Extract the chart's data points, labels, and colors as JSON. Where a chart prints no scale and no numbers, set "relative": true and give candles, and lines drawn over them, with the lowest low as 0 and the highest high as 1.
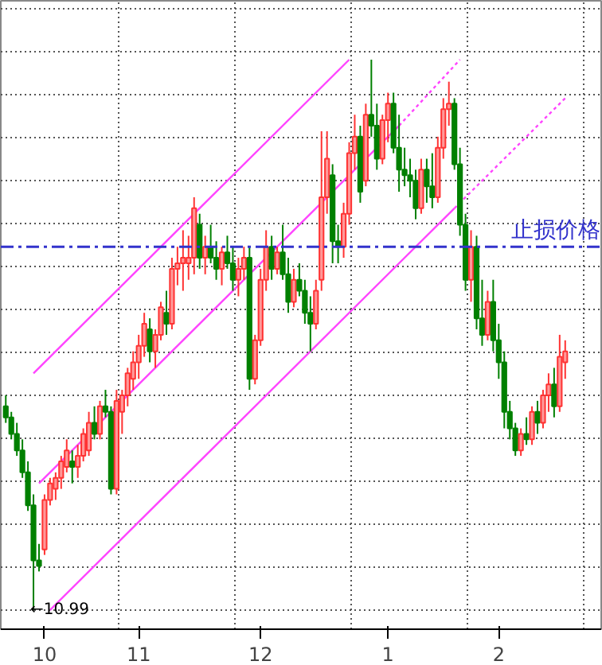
{
  "chart_data": {
    "type": "candlestick",
    "relative": true,
    "grid": true,
    "categories": [
      null,
      null,
      null,
      null,
      null,
      null,
      null,
      "10",
      null,
      null,
      null,
      null,
      null,
      null,
      null,
      null,
      null,
      null,
      null,
      null,
      null,
      null,
      null,
      null,
      "11",
      null,
      null,
      null,
      null,
      null,
      null,
      null,
      null,
      null,
      null,
      null,
      null,
      null,
      null,
      null,
      null,
      null,
      null,
      null,
      null,
      null,
      "12",
      null,
      null,
      null,
      null,
      null,
      null,
      null,
      null,
      null,
      null,
      null,
      null,
      null,
      null,
      null,
      null,
      null,
      null,
      null,
      null,
      null,
      null,
      "1",
      null,
      null,
      null,
      null,
      null,
      null,
      null,
      null,
      null,
      null,
      null,
      null,
      null,
      null,
      null,
      null,
      null,
      null,
      null,
      "2",
      null,
      null,
      null,
      null,
      null,
      null,
      null,
      null,
      null,
      null,
      null,
      null
    ],
    "ohlc": [
      [
        0.37,
        0.39,
        0.34,
        0.35
      ],
      [
        0.35,
        0.36,
        0.31,
        0.32
      ],
      [
        0.32,
        0.34,
        0.28,
        0.29
      ],
      [
        0.29,
        0.31,
        0.24,
        0.25
      ],
      [
        0.25,
        0.27,
        0.18,
        0.19
      ],
      [
        0.19,
        0.21,
        0.0,
        0.09
      ],
      [
        0.09,
        0.12,
        0.07,
        0.08
      ],
      [
        0.11,
        0.21,
        0.1,
        0.2
      ],
      [
        0.2,
        0.24,
        0.19,
        0.23
      ],
      [
        0.22,
        0.25,
        0.2,
        0.24
      ],
      [
        0.24,
        0.28,
        0.22,
        0.27
      ],
      [
        0.26,
        0.31,
        0.25,
        0.29
      ],
      [
        0.27,
        0.29,
        0.23,
        0.26
      ],
      [
        0.26,
        0.3,
        0.24,
        0.28
      ],
      [
        0.28,
        0.33,
        0.27,
        0.32
      ],
      [
        0.29,
        0.36,
        0.28,
        0.34
      ],
      [
        0.34,
        0.37,
        0.31,
        0.32
      ],
      [
        0.32,
        0.38,
        0.31,
        0.37
      ],
      [
        0.37,
        0.4,
        0.35,
        0.36
      ],
      [
        0.36,
        0.37,
        0.21,
        0.22
      ],
      [
        0.22,
        0.4,
        0.21,
        0.38
      ],
      [
        0.36,
        0.4,
        0.32,
        0.39
      ],
      [
        0.39,
        0.44,
        0.37,
        0.43
      ],
      [
        0.42,
        0.47,
        0.4,
        0.45
      ],
      [
        0.45,
        0.5,
        0.42,
        0.48
      ],
      [
        0.48,
        0.54,
        0.46,
        0.52
      ],
      [
        0.51,
        0.53,
        0.45,
        0.47
      ],
      [
        0.47,
        0.51,
        0.44,
        0.5
      ],
      [
        0.5,
        0.56,
        0.49,
        0.55
      ],
      [
        0.54,
        0.58,
        0.5,
        0.52
      ],
      [
        0.52,
        0.64,
        0.51,
        0.62
      ],
      [
        0.62,
        0.66,
        0.59,
        0.63
      ],
      [
        0.63,
        0.69,
        0.58,
        0.64
      ],
      [
        0.63,
        0.68,
        0.6,
        0.64
      ],
      [
        0.64,
        0.75,
        0.61,
        0.73
      ],
      [
        0.7,
        0.72,
        0.62,
        0.64
      ],
      [
        0.64,
        0.68,
        0.61,
        0.66
      ],
      [
        0.66,
        0.7,
        0.63,
        0.64
      ],
      [
        0.64,
        0.67,
        0.6,
        0.62
      ],
      [
        0.62,
        0.66,
        0.59,
        0.65
      ],
      [
        0.65,
        0.68,
        0.62,
        0.63
      ],
      [
        0.63,
        0.66,
        0.58,
        0.6
      ],
      [
        0.6,
        0.64,
        0.57,
        0.62
      ],
      [
        0.62,
        0.66,
        0.6,
        0.64
      ],
      [
        0.64,
        0.66,
        0.4,
        0.42
      ],
      [
        0.42,
        0.5,
        0.41,
        0.49
      ],
      [
        0.49,
        0.62,
        0.48,
        0.6
      ],
      [
        0.6,
        0.69,
        0.58,
        0.66
      ],
      [
        0.66,
        0.68,
        0.6,
        0.62
      ],
      [
        0.62,
        0.66,
        0.61,
        0.65
      ],
      [
        0.65,
        0.7,
        0.6,
        0.61
      ],
      [
        0.61,
        0.64,
        0.54,
        0.56
      ],
      [
        0.56,
        0.62,
        0.55,
        0.6
      ],
      [
        0.6,
        0.63,
        0.57,
        0.58
      ],
      [
        0.58,
        0.6,
        0.52,
        0.54
      ],
      [
        0.54,
        0.57,
        0.47,
        0.52
      ],
      [
        0.52,
        0.6,
        0.51,
        0.58
      ],
      [
        0.6,
        0.87,
        0.58,
        0.75
      ],
      [
        0.75,
        0.87,
        0.72,
        0.82
      ],
      [
        0.79,
        0.81,
        0.63,
        0.67
      ],
      [
        0.67,
        0.7,
        0.63,
        0.66
      ],
      [
        0.66,
        0.74,
        0.64,
        0.72
      ],
      [
        0.72,
        0.85,
        0.7,
        0.83
      ],
      [
        0.83,
        0.9,
        0.8,
        0.86
      ],
      [
        0.86,
        0.88,
        0.74,
        0.76
      ],
      [
        0.78,
        0.92,
        0.77,
        0.9
      ],
      [
        0.9,
        1.0,
        0.86,
        0.88
      ],
      [
        0.88,
        0.92,
        0.8,
        0.82
      ],
      [
        0.82,
        0.9,
        0.81,
        0.89
      ],
      [
        0.89,
        0.94,
        0.85,
        0.92
      ],
      [
        0.92,
        0.94,
        0.83,
        0.84
      ],
      [
        0.84,
        0.9,
        0.76,
        0.8
      ],
      [
        0.8,
        0.84,
        0.77,
        0.79
      ],
      [
        0.79,
        0.82,
        0.75,
        0.78
      ],
      [
        0.78,
        0.8,
        0.71,
        0.73
      ],
      [
        0.73,
        0.82,
        0.72,
        0.8
      ],
      [
        0.8,
        0.82,
        0.74,
        0.77
      ],
      [
        0.77,
        0.83,
        0.73,
        0.75
      ],
      [
        0.75,
        0.86,
        0.74,
        0.84
      ],
      [
        0.84,
        0.93,
        0.82,
        0.91
      ],
      [
        0.91,
        0.96,
        0.88,
        0.92
      ],
      [
        0.92,
        0.93,
        0.8,
        0.81
      ],
      [
        0.81,
        0.84,
        0.68,
        0.7
      ],
      [
        0.7,
        0.72,
        0.58,
        0.6
      ],
      [
        0.6,
        0.69,
        0.56,
        0.66
      ],
      [
        0.66,
        0.68,
        0.51,
        0.53
      ],
      [
        0.53,
        0.6,
        0.48,
        0.5
      ],
      [
        0.5,
        0.58,
        0.49,
        0.56
      ],
      [
        0.56,
        0.6,
        0.47,
        0.49
      ],
      [
        0.49,
        0.52,
        0.42,
        0.45
      ],
      [
        0.45,
        0.47,
        0.33,
        0.36
      ],
      [
        0.36,
        0.38,
        0.31,
        0.33
      ],
      [
        0.33,
        0.34,
        0.28,
        0.29
      ],
      [
        0.29,
        0.33,
        0.28,
        0.32
      ],
      [
        0.32,
        0.35,
        0.3,
        0.31
      ],
      [
        0.31,
        0.37,
        0.3,
        0.36
      ],
      [
        0.36,
        0.38,
        0.32,
        0.34
      ],
      [
        0.34,
        0.4,
        0.33,
        0.39
      ],
      [
        0.39,
        0.43,
        0.36,
        0.41
      ],
      [
        0.41,
        0.44,
        0.35,
        0.37
      ],
      [
        0.37,
        0.5,
        0.36,
        0.46
      ],
      [
        0.45,
        0.49,
        0.42,
        0.47
      ]
    ],
    "series": [
      {
        "type": "line",
        "color": "#ff44ff",
        "line_style": "solid",
        "values": [
          null,
          null,
          null,
          null,
          null,
          0.43,
          null,
          null,
          null,
          null,
          null,
          null,
          null,
          null,
          null,
          null,
          null,
          null,
          null,
          null,
          null,
          null,
          null,
          null,
          null,
          null,
          null,
          null,
          null,
          null,
          null,
          null,
          null,
          null,
          null,
          null,
          null,
          null,
          null,
          null,
          null,
          null,
          null,
          null,
          null,
          null,
          null,
          null,
          null,
          null,
          null,
          null,
          null,
          null,
          null,
          null,
          null,
          null,
          null,
          null,
          null,
          null,
          1.0,
          null,
          null,
          null,
          null,
          null,
          null,
          null,
          null,
          null,
          null,
          null,
          null,
          null,
          null,
          null,
          null,
          null,
          null,
          null,
          null,
          null,
          null,
          null,
          null,
          null,
          null,
          null,
          null,
          null,
          null,
          null,
          null,
          null,
          null,
          null,
          null,
          null,
          null,
          null
        ]
      },
      {
        "type": "line",
        "color": "#ff44ff",
        "line_style": "solid",
        "values": [
          null,
          null,
          null,
          null,
          null,
          null,
          0.23,
          null,
          null,
          null,
          null,
          null,
          null,
          null,
          null,
          null,
          null,
          null,
          null,
          null,
          null,
          null,
          null,
          null,
          null,
          null,
          null,
          null,
          null,
          null,
          null,
          null,
          null,
          null,
          null,
          null,
          null,
          null,
          null,
          null,
          null,
          null,
          null,
          null,
          null,
          null,
          null,
          null,
          null,
          null,
          null,
          null,
          null,
          null,
          null,
          null,
          null,
          null,
          null,
          null,
          null,
          null,
          null,
          null,
          null,
          null,
          null,
          null,
          null,
          null,
          null,
          0.88,
          null,
          null,
          null,
          null,
          null,
          null,
          null,
          null,
          null,
          null,
          null,
          null,
          null,
          null,
          null,
          null,
          null,
          null,
          null,
          null,
          null,
          null,
          null,
          null,
          null,
          null,
          null,
          null,
          null,
          null
        ]
      },
      {
        "type": "line",
        "color": "#ff44ff",
        "line_style": "dotted",
        "values": [
          null,
          null,
          null,
          null,
          null,
          null,
          null,
          null,
          null,
          null,
          null,
          null,
          null,
          null,
          null,
          null,
          null,
          null,
          null,
          null,
          null,
          null,
          null,
          null,
          null,
          null,
          null,
          null,
          null,
          null,
          null,
          null,
          null,
          null,
          null,
          null,
          null,
          null,
          null,
          null,
          null,
          null,
          null,
          null,
          null,
          null,
          null,
          null,
          null,
          null,
          null,
          null,
          null,
          null,
          null,
          null,
          null,
          null,
          null,
          null,
          null,
          null,
          null,
          null,
          null,
          null,
          null,
          null,
          null,
          null,
          null,
          0.88,
          null,
          null,
          null,
          null,
          null,
          null,
          null,
          null,
          null,
          null,
          1.0,
          null,
          null,
          null,
          null,
          null,
          null,
          null,
          null,
          null,
          null,
          null,
          null,
          null,
          null,
          null,
          null,
          null,
          null,
          null
        ]
      },
      {
        "type": "line",
        "color": "#ff44ff",
        "line_style": "solid",
        "values": [
          null,
          null,
          null,
          null,
          null,
          null,
          null,
          null,
          0.0,
          null,
          null,
          null,
          null,
          null,
          null,
          null,
          null,
          null,
          null,
          null,
          null,
          null,
          null,
          null,
          null,
          null,
          null,
          null,
          null,
          null,
          null,
          null,
          null,
          null,
          null,
          null,
          null,
          null,
          null,
          null,
          null,
          null,
          null,
          null,
          null,
          null,
          null,
          null,
          null,
          null,
          null,
          null,
          null,
          null,
          null,
          null,
          null,
          null,
          null,
          null,
          null,
          null,
          null,
          null,
          null,
          null,
          null,
          null,
          null,
          null,
          null,
          null,
          null,
          null,
          null,
          null,
          null,
          null,
          null,
          null,
          null,
          0.73,
          null,
          null,
          null,
          null,
          null,
          null,
          null,
          null,
          null,
          null,
          null,
          null,
          null,
          null,
          null,
          null,
          null,
          null,
          null,
          null
        ]
      },
      {
        "type": "line",
        "color": "#ff44ff",
        "line_style": "dotted",
        "values": [
          null,
          null,
          null,
          null,
          null,
          null,
          null,
          null,
          null,
          null,
          null,
          null,
          null,
          null,
          null,
          null,
          null,
          null,
          null,
          null,
          null,
          null,
          null,
          null,
          null,
          null,
          null,
          null,
          null,
          null,
          null,
          null,
          null,
          null,
          null,
          null,
          null,
          null,
          null,
          null,
          null,
          null,
          null,
          null,
          null,
          null,
          null,
          null,
          null,
          null,
          null,
          null,
          null,
          null,
          null,
          null,
          null,
          null,
          null,
          null,
          null,
          null,
          null,
          null,
          null,
          null,
          null,
          null,
          null,
          null,
          null,
          null,
          null,
          null,
          null,
          null,
          null,
          null,
          null,
          null,
          null,
          0.73,
          null,
          null,
          null,
          null,
          null,
          null,
          null,
          null,
          null,
          null,
          null,
          null,
          null,
          null,
          null,
          null,
          null,
          null,
          null,
          0.93
        ]
      }
    ],
    "ref_lines": [
      {
        "axis": "y",
        "value": 0.66,
        "label": "止损价格",
        "color": "#3333cc",
        "line_style": "dashed"
      }
    ],
    "annotations": [
      "←10.99"
    ]
  }
}
